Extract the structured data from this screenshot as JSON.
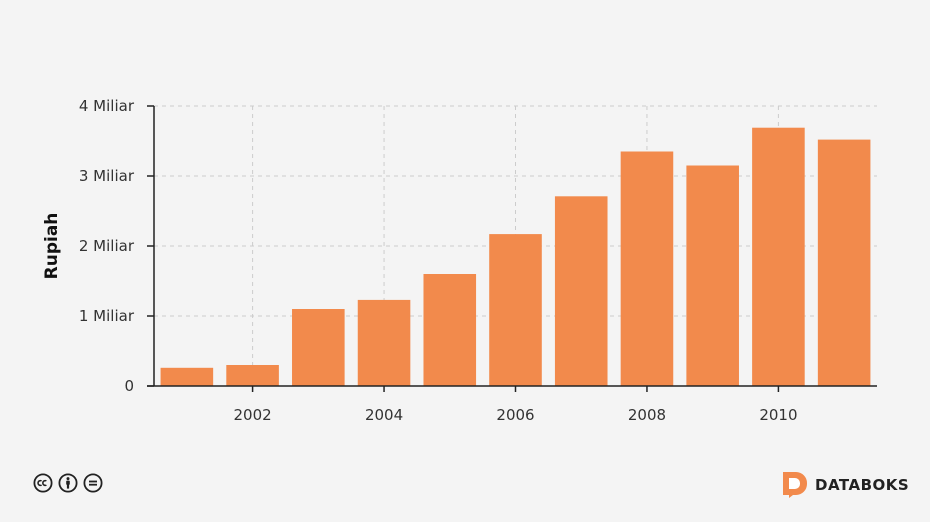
{
  "chart_data": {
    "type": "bar",
    "x": [
      2001,
      2002,
      2003,
      2004,
      2005,
      2006,
      2007,
      2008,
      2009,
      2010,
      2011
    ],
    "values": [
      0.26,
      0.3,
      1.1,
      1.23,
      1.6,
      2.17,
      2.71,
      3.35,
      3.15,
      3.69,
      3.52
    ],
    "xticks": [
      2002,
      2004,
      2006,
      2008,
      2010
    ],
    "xtick_labels": [
      "2002",
      "2004",
      "2006",
      "2008",
      "2010"
    ],
    "yticks": [
      0,
      1,
      2,
      3,
      4
    ],
    "ytick_labels": [
      "0",
      "1 Miliar",
      "2 Miliar",
      "3 Miliar",
      "4 Miliar"
    ],
    "ylabel": "Rupiah",
    "xlabel": "",
    "title": "",
    "ylim": [
      0,
      4
    ],
    "xlim": [
      2000.5,
      2011.5
    ],
    "grid": true,
    "bar_color": "#f28a4c"
  },
  "footer": {
    "license_icons": [
      "cc-icon",
      "by-icon",
      "nd-icon"
    ],
    "brand": "DATABOKS",
    "brand_color": "#f28a4c"
  }
}
